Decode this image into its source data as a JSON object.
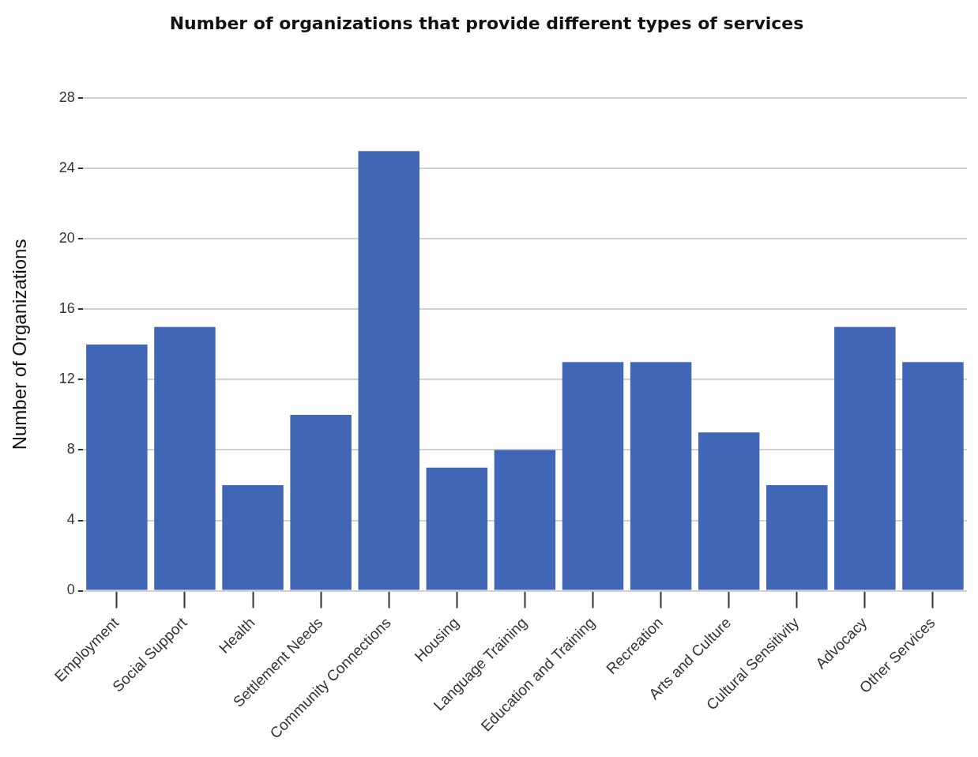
{
  "chart_data": {
    "type": "bar",
    "title": "Number of organizations that provide different types of services",
    "ylabel": "Number of Organizations",
    "categories": [
      "Employment",
      "Social Support",
      "Health",
      "Settlement Needs",
      "Community Connections",
      "Housing",
      "Language Training",
      "Education and Training",
      "Recreation",
      "Arts and Culture",
      "Cultural Sensitivity",
      "Advocacy",
      "Other Services"
    ],
    "values": [
      14,
      15,
      6,
      10,
      25,
      7,
      8,
      13,
      13,
      9,
      6,
      15,
      13
    ],
    "color": "#4166b5",
    "ylim": [
      0,
      28
    ],
    "yticks": [
      0,
      4,
      8,
      12,
      16,
      20,
      24,
      28
    ],
    "grid": "y",
    "legend": false
  }
}
